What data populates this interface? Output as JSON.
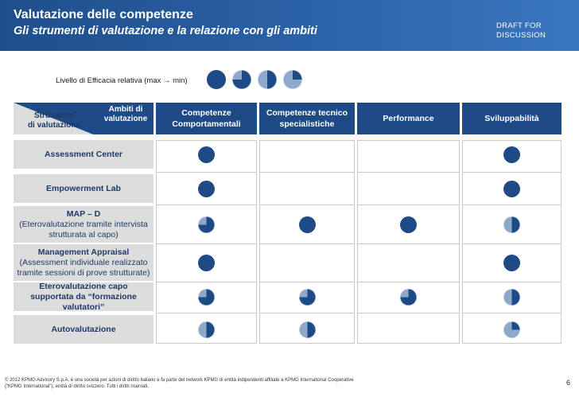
{
  "header": {
    "title": "Valutazione delle competenze",
    "subtitle": "Gli strumenti di valutazione e la relazione con gli ambiti",
    "draft_line1": "DRAFT  FOR",
    "draft_line2": "DISCUSSION"
  },
  "colors": {
    "dark": "#1e4a86",
    "light": "#8ea9cc",
    "header": "#2b63a8"
  },
  "legend": {
    "label": "Livello di Efficacia relativa (max → min)",
    "levels": [
      1,
      0.75,
      0.5,
      0.25
    ]
  },
  "table": {
    "corner_top_line1": "Ambiti di",
    "corner_top_line2": "valutazione",
    "corner_bottom_line1": "Strumento",
    "corner_bottom_line2": "di valutazione",
    "columns": [
      {
        "line1": "Competenze",
        "line2": "Comportamentali"
      },
      {
        "line1": "Competenze tecnico",
        "line2": "specialistiche"
      },
      {
        "line1": "Performance",
        "line2": ""
      },
      {
        "line1": "Sviluppabilità",
        "line2": ""
      }
    ],
    "rows": [
      {
        "name": "Assessment Center",
        "detail": "",
        "ratings": [
          1,
          null,
          null,
          1
        ]
      },
      {
        "name": "Empowerment Lab",
        "detail": "",
        "ratings": [
          1,
          null,
          null,
          1
        ]
      },
      {
        "name": "MAP – D",
        "detail": "(Eterovalutazione tramite intervista strutturata al capo)",
        "ratings": [
          0.75,
          1,
          1,
          0.5
        ]
      },
      {
        "name": "Management Appraisal",
        "detail": "(Assessment individuale realizzato tramite sessioni di prove strutturate)",
        "ratings": [
          1,
          null,
          null,
          1
        ]
      },
      {
        "name": "Eterovalutazione capo supportata da “formazione valutatori”",
        "detail": "",
        "ratings": [
          0.75,
          0.75,
          0.75,
          0.5
        ]
      },
      {
        "name": "Autovalutazione",
        "detail": "",
        "ratings": [
          0.5,
          0.5,
          null,
          0.25
        ]
      }
    ]
  },
  "footer": {
    "text": "© 2012 KPMG Advisory S.p.A. è una società per azioni di diritto italiano e fa parte del network KPMG di entità indipendenti affiliate a KPMG International Cooperative (“KPMG International”), entità di diritto svizzero. Tutti i diritti riservati.",
    "page": "6"
  }
}
